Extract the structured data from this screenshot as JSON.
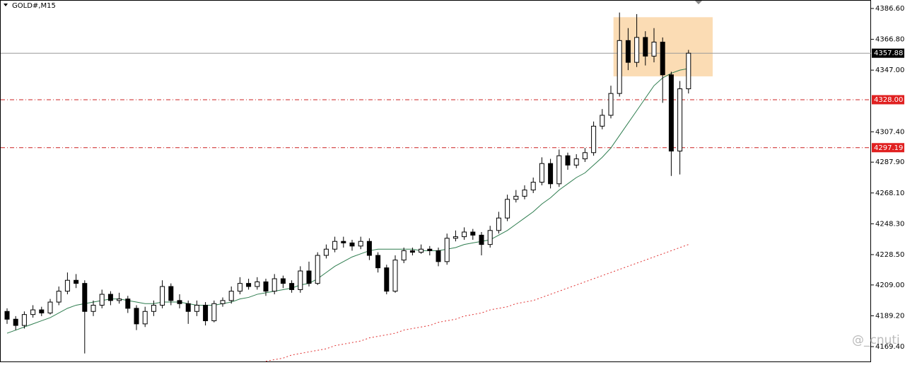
{
  "chart_data": {
    "type": "candlestick",
    "title": "GOLD#,M15",
    "watermark": "@_cnuti",
    "ylim": [
      4159.4,
      4392.05
    ],
    "yticks": [
      {
        "value": 4386.6,
        "label": "4386.60"
      },
      {
        "value": 4366.8,
        "label": "4366.80"
      },
      {
        "value": 4347,
        "label": "4347.00"
      },
      {
        "value": 4307.4,
        "label": "4307.40"
      },
      {
        "value": 4287.9,
        "label": "4287.90"
      },
      {
        "value": 4268.1,
        "label": "4268.10"
      },
      {
        "value": 4248.3,
        "label": "4248.30"
      },
      {
        "value": 4228.5,
        "label": "4228.50"
      },
      {
        "value": 4209,
        "label": "4209.00"
      },
      {
        "value": 4189.2,
        "label": "4189.20"
      },
      {
        "value": 4169.4,
        "label": "4169.40"
      }
    ],
    "open": [
      4192,
      4187,
      4183,
      4190,
      4193,
      4191,
      4198,
      4205,
      4212,
      4210,
      4192,
      4196,
      4203,
      4199,
      4200,
      4194,
      4184,
      4192,
      4196,
      4208,
      4199,
      4197,
      4192,
      4196,
      4186,
      4197,
      4199,
      4205,
      4210,
      4208,
      4211,
      4205,
      4213,
      4210,
      4206,
      4218,
      4210,
      4228,
      4232,
      4237,
      4236,
      4234,
      4237,
      4228,
      4220,
      4205,
      4225,
      4231,
      4230,
      4232,
      4231,
      4224,
      4239,
      4240,
      4243,
      4241,
      4235,
      4244,
      4252,
      4264,
      4266,
      4270,
      4275,
      4287,
      4274,
      4292,
      4286,
      4290,
      4294,
      4311,
      4318,
      4332,
      4366,
      4352,
      4368,
      4356,
      4365,
      4344,
      4295,
      4335
    ],
    "high": [
      4194,
      4189,
      4192,
      4196,
      4195,
      4200,
      4208,
      4217,
      4216,
      4212,
      4199,
      4206,
      4205,
      4204,
      4202,
      4196,
      4195,
      4199,
      4212,
      4210,
      4203,
      4199,
      4199,
      4198,
      4199,
      4201,
      4208,
      4214,
      4213,
      4214,
      4213,
      4216,
      4215,
      4212,
      4221,
      4224,
      4230,
      4235,
      4240,
      4240,
      4238,
      4240,
      4239,
      4230,
      4222,
      4228,
      4233,
      4233,
      4235,
      4234,
      4233,
      4242,
      4244,
      4246,
      4245,
      4243,
      4247,
      4256,
      4267,
      4270,
      4273,
      4278,
      4291,
      4290,
      4296,
      4294,
      4293,
      4297,
      4314,
      4322,
      4337,
      4384,
      4374,
      4383,
      4372,
      4374,
      4368,
      4346,
      4340,
      4360
    ],
    "low": [
      4184,
      4180,
      4181,
      4188,
      4189,
      4190,
      4196,
      4203,
      4207,
      4165,
      4189,
      4194,
      4196,
      4197,
      4191,
      4180,
      4182,
      4189,
      4194,
      4196,
      4194,
      4184,
      4189,
      4183,
      4185,
      4195,
      4197,
      4203,
      4206,
      4206,
      4202,
      4203,
      4207,
      4204,
      4204,
      4208,
      4209,
      4226,
      4230,
      4233,
      4231,
      4232,
      4225,
      4217,
      4203,
      4204,
      4223,
      4228,
      4229,
      4228,
      4221,
      4222,
      4237,
      4238,
      4238,
      4228,
      4233,
      4242,
      4250,
      4262,
      4264,
      4268,
      4273,
      4271,
      4272,
      4283,
      4284,
      4288,
      4292,
      4309,
      4316,
      4330,
      4347,
      4349,
      4350,
      4352,
      4326,
      4279,
      4280,
      4332
    ],
    "close": [
      4187,
      4183,
      4190,
      4193,
      4191,
      4198,
      4205,
      4212,
      4210,
      4192,
      4196,
      4203,
      4199,
      4200,
      4194,
      4184,
      4192,
      4196,
      4208,
      4199,
      4197,
      4192,
      4196,
      4186,
      4197,
      4199,
      4205,
      4210,
      4208,
      4211,
      4205,
      4213,
      4210,
      4206,
      4218,
      4210,
      4228,
      4232,
      4237,
      4236,
      4234,
      4237,
      4228,
      4220,
      4205,
      4225,
      4231,
      4230,
      4232,
      4231,
      4224,
      4239,
      4240,
      4243,
      4241,
      4235,
      4244,
      4252,
      4264,
      4266,
      4270,
      4275,
      4287,
      4274,
      4292,
      4286,
      4290,
      4294,
      4311,
      4318,
      4332,
      4366,
      4352,
      4368,
      4356,
      4365,
      4344,
      4295,
      4335,
      4357.88
    ],
    "up_color": "#ffffff",
    "down_color": "#000000",
    "edge_color": "#000000",
    "lines": [
      {
        "color": "#2e7d4f",
        "style": "solid",
        "values": [
          4178,
          4180,
          4182,
          4184,
          4186,
          4188,
          4191,
          4194,
          4196,
          4197,
          4198,
          4199,
          4200,
          4200,
          4199,
          4198,
          4197,
          4197,
          4198,
          4198,
          4198,
          4197,
          4196,
          4196,
          4196,
          4197,
          4198,
          4200,
          4201,
          4203,
          4204,
          4205,
          4206,
          4207,
          4209,
          4210,
          4213,
          4217,
          4221,
          4224,
          4227,
          4229,
          4231,
          4232,
          4232,
          4232,
          4232,
          4232,
          4231,
          4231,
          4231,
          4232,
          4233,
          4235,
          4236,
          4237,
          4238,
          4241,
          4244,
          4248,
          4252,
          4256,
          4261,
          4265,
          4270,
          4274,
          4278,
          4281,
          4286,
          4291,
          4297,
          4305,
          4313,
          4321,
          4329,
          4337,
          4342,
          4345,
          4347,
          4348
        ]
      },
      {
        "color": "#e03030",
        "style": "dotted",
        "values": [
          null,
          null,
          null,
          null,
          null,
          null,
          null,
          null,
          null,
          null,
          null,
          null,
          null,
          null,
          null,
          null,
          null,
          null,
          null,
          null,
          null,
          null,
          null,
          null,
          null,
          null,
          null,
          null,
          null,
          null,
          4160,
          4161,
          4162,
          4164,
          4165,
          4166,
          4167,
          4168,
          4170,
          4171,
          4172,
          4173,
          4175,
          4176,
          4177,
          4178,
          4180,
          4181,
          4182,
          4183,
          4185,
          4186,
          4187,
          4189,
          4190,
          4191,
          4193,
          4194,
          4195,
          4197,
          4198,
          4199,
          4201,
          4203,
          4205,
          4207,
          4209,
          4211,
          4213,
          4215,
          4217,
          4219,
          4221,
          4223,
          4225,
          4227,
          4229,
          4231,
          4233,
          4235
        ]
      }
    ],
    "levels": [
      {
        "value": 4357.88,
        "color": "#999999",
        "label_color": "#000000",
        "style": "solid"
      },
      {
        "value": 4328,
        "label": "4328.00",
        "color": "#cc2020",
        "label_color": "#e02020",
        "style": "dashdot"
      },
      {
        "value": 4297.19,
        "color": "#cc2020",
        "label_color": "#e02020",
        "style": "dashdot"
      }
    ],
    "zone": {
      "from": 70.3,
      "to": 81.8,
      "top": 4381,
      "bottom": 4343,
      "color": "#fbdcb4"
    }
  }
}
